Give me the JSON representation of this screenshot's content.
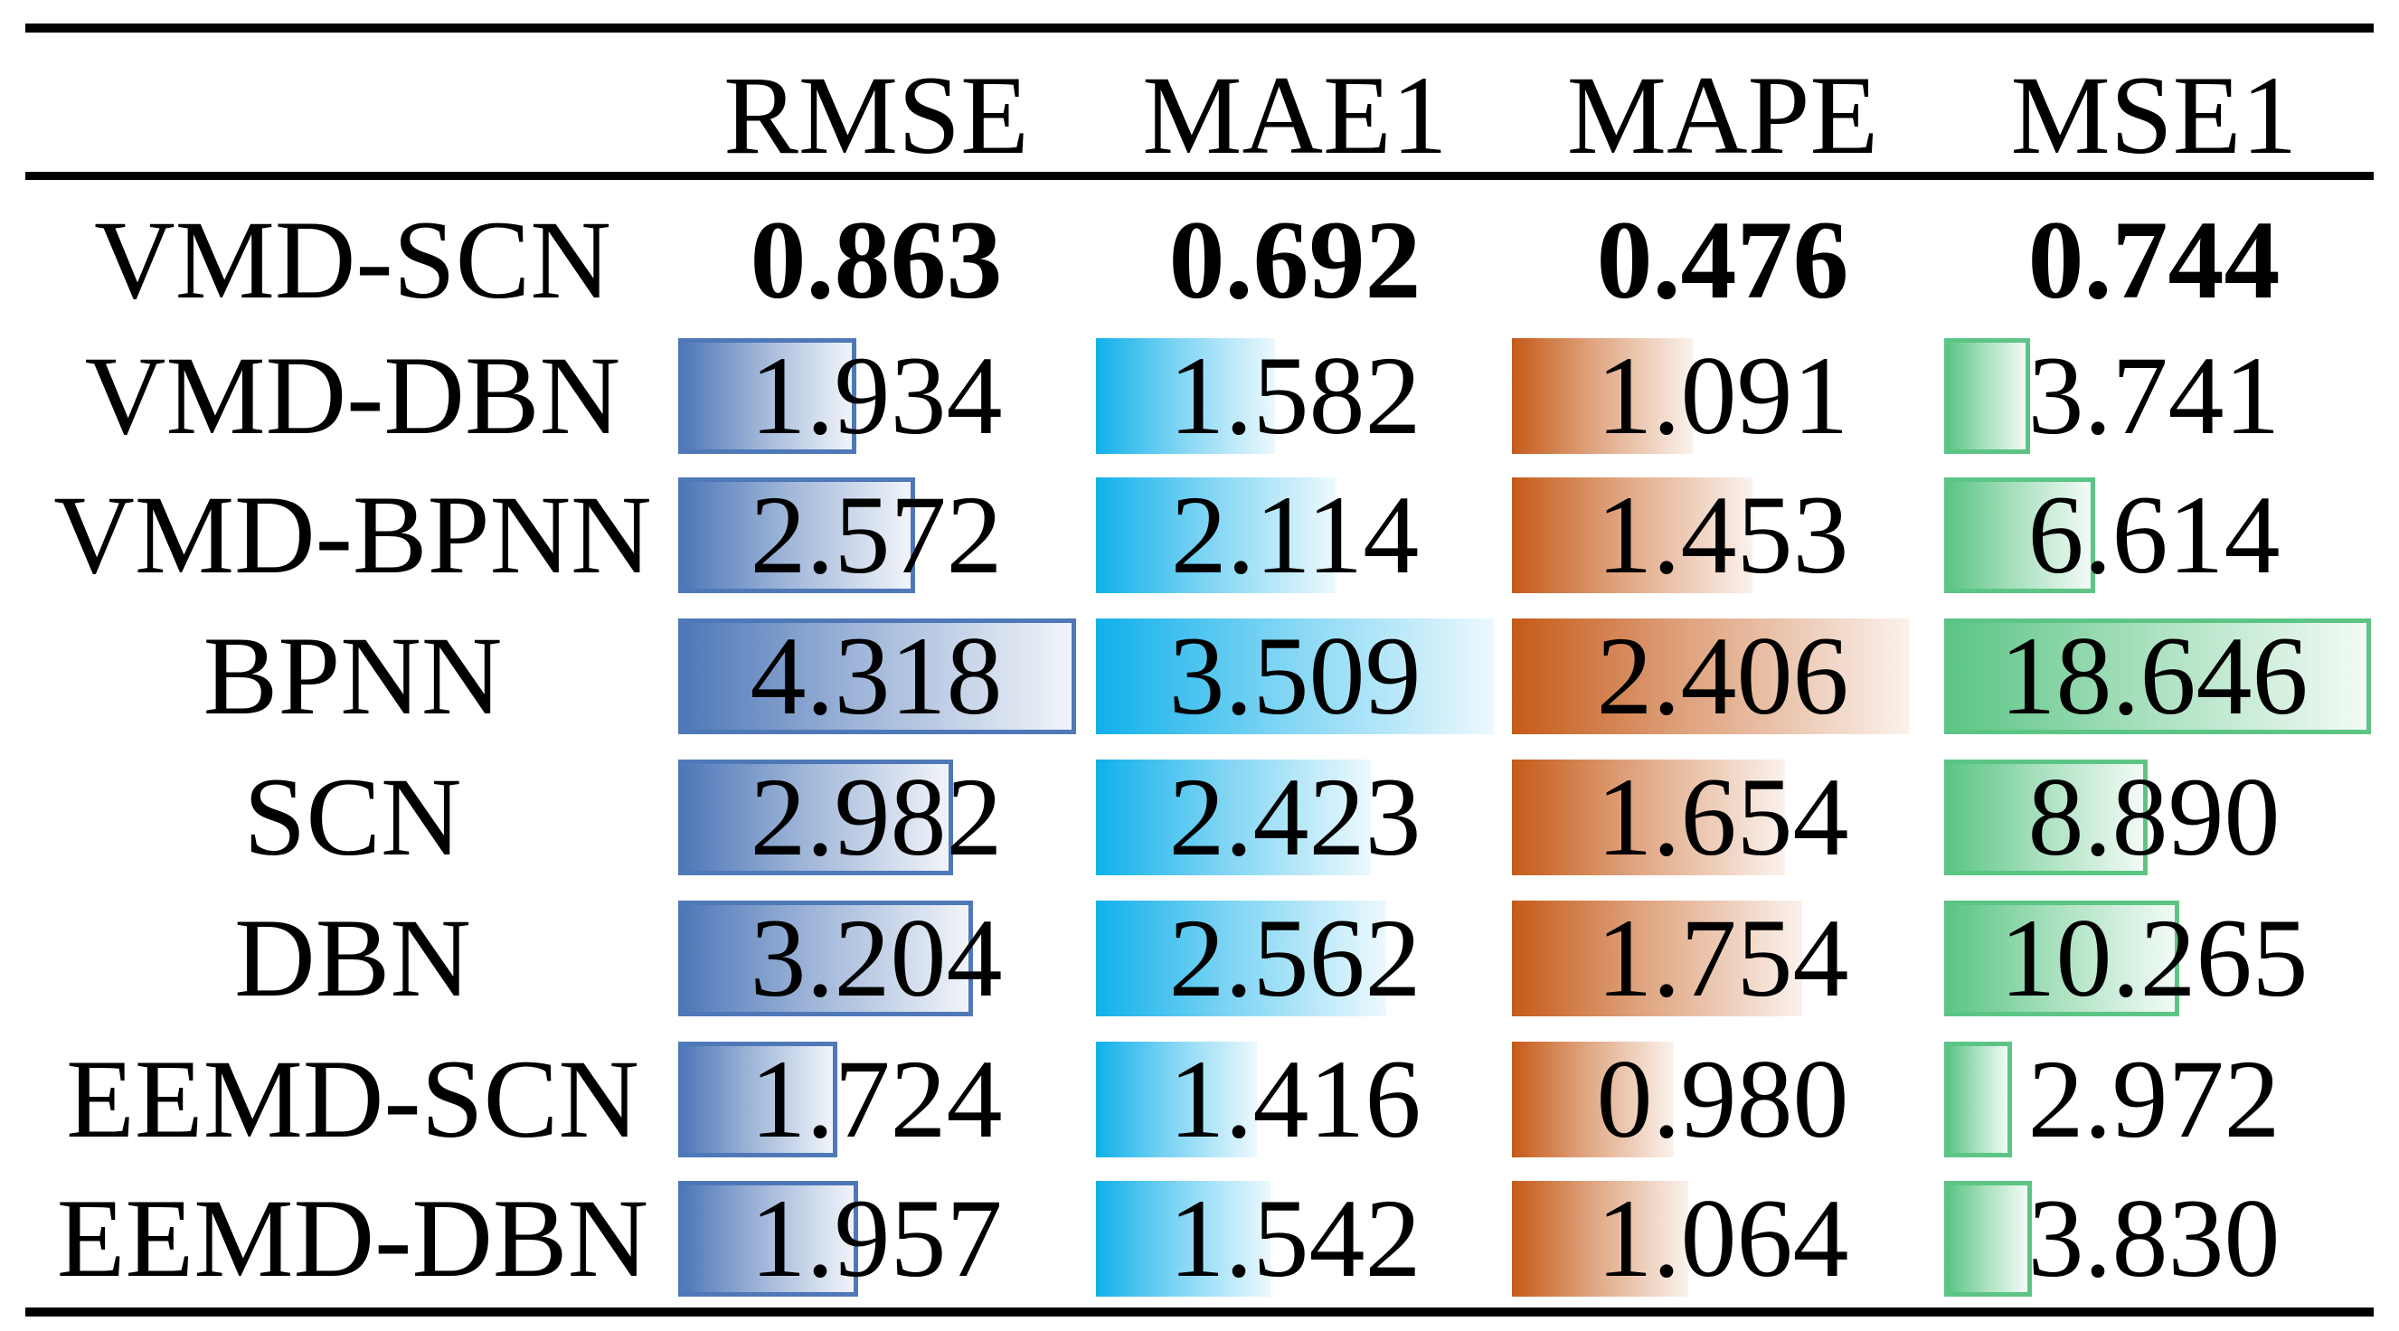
{
  "chart_data": {
    "type": "table",
    "columns": [
      "RMSE",
      "MAE1",
      "MAPE",
      "MSE1"
    ],
    "rows": [
      {
        "label": "VMD-SCN",
        "values": [
          "0.863",
          "0.692",
          "0.476",
          "0.744"
        ],
        "bold": true,
        "bars": false
      },
      {
        "label": "VMD-DBN",
        "values": [
          "1.934",
          "1.582",
          "1.091",
          "3.741"
        ],
        "bold": false,
        "bars": true
      },
      {
        "label": "VMD-BPNN",
        "values": [
          "2.572",
          "2.114",
          "1.453",
          "6.614"
        ],
        "bold": false,
        "bars": true
      },
      {
        "label": "BPNN",
        "values": [
          "4.318",
          "3.509",
          "2.406",
          "18.646"
        ],
        "bold": false,
        "bars": true
      },
      {
        "label": "SCN",
        "values": [
          "2.982",
          "2.423",
          "1.654",
          "8.890"
        ],
        "bold": false,
        "bars": true
      },
      {
        "label": "DBN",
        "values": [
          "3.204",
          "2.562",
          "1.754",
          "10.265"
        ],
        "bold": false,
        "bars": true
      },
      {
        "label": "EEMD-SCN",
        "values": [
          "1.724",
          "1.416",
          "0.980",
          "2.972"
        ],
        "bold": false,
        "bars": true
      },
      {
        "label": "EEMD-DBN",
        "values": [
          "1.957",
          "1.542",
          "1.064",
          "3.830"
        ],
        "bold": false,
        "bars": true
      }
    ],
    "bar_colors": [
      "#4f78b8",
      "#10b0ea",
      "#c55a18",
      "#5cc585"
    ],
    "bar_bordered": [
      true,
      false,
      false,
      true
    ]
  }
}
